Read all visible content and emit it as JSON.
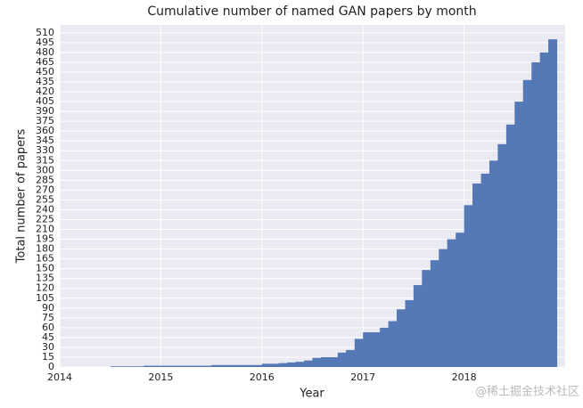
{
  "chart_data": {
    "type": "histogram",
    "title": "Cumulative number of named GAN papers by month",
    "x_label": "Year",
    "y_label": "Total number of papers",
    "watermark": "@稀土掘金技术社区",
    "color": "#5579b6",
    "grid": true,
    "bins": [
      2014.5,
      2014.583,
      2014.667,
      2014.75,
      2014.833,
      2014.917,
      2015,
      2015.083,
      2015.167,
      2015.25,
      2015.333,
      2015.417,
      2015.5,
      2015.583,
      2015.667,
      2015.75,
      2015.833,
      2015.917,
      2016,
      2016.083,
      2016.167,
      2016.25,
      2016.333,
      2016.417,
      2016.5,
      2016.583,
      2016.667,
      2016.75,
      2016.833,
      2016.917,
      2017,
      2017.083,
      2017.167,
      2017.25,
      2017.333,
      2017.417,
      2017.5,
      2017.583,
      2017.667,
      2017.75,
      2017.833,
      2017.917,
      2018,
      2018.083,
      2018.167,
      2018.25,
      2018.333,
      2018.417,
      2018.5,
      2018.583,
      2018.667,
      2018.75,
      2018.833,
      2018.917
    ],
    "values": [
      1,
      1,
      1,
      1,
      2,
      2,
      2,
      2,
      2,
      2,
      2,
      2,
      3,
      3,
      3,
      3,
      3,
      3,
      5,
      5,
      6,
      7,
      8,
      10,
      14,
      15,
      15,
      22,
      26,
      43,
      53,
      53,
      60,
      70,
      88,
      102,
      125,
      148,
      163,
      180,
      195,
      205,
      247,
      280,
      295,
      315,
      340,
      370,
      405,
      438,
      465,
      480,
      500
    ],
    "xlim": [
      2014,
      2019
    ],
    "xticks": [
      2014,
      2015,
      2016,
      2017,
      2018
    ],
    "ylim": [
      0,
      522
    ],
    "yticks": [
      0,
      15,
      30,
      45,
      60,
      75,
      90,
      105,
      120,
      135,
      150,
      165,
      180,
      195,
      210,
      225,
      240,
      255,
      270,
      285,
      300,
      315,
      330,
      345,
      360,
      375,
      390,
      405,
      420,
      435,
      450,
      465,
      480,
      495,
      510
    ]
  }
}
